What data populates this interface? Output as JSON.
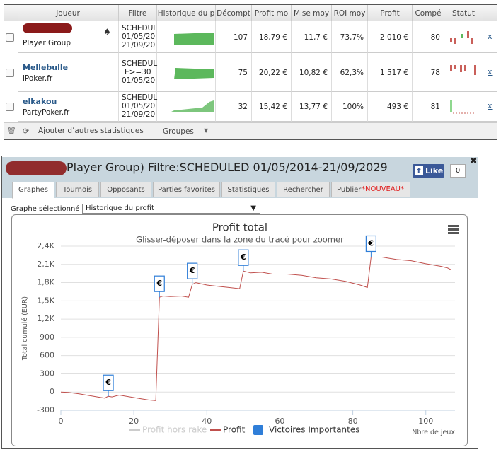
{
  "table": {
    "headers": [
      "Joueur",
      "Filtre",
      "Historique du p",
      "Décompt",
      "Profit mo",
      "Mise moy",
      "ROI moy",
      "Profit",
      "Compé",
      "Statut"
    ],
    "rows": [
      {
        "site": "Player Group",
        "filter": [
          "SCHEDUL",
          "01/05/20",
          "21/09/20"
        ],
        "cells": [
          "107",
          "18,79 €",
          "11,7 €",
          "73,7%",
          "2 010 €",
          "80"
        ],
        "action": "x"
      },
      {
        "name": "Mellebulle",
        "site": "iPoker.fr",
        "filter": [
          "SCHEDUL",
          "E>=30",
          "01/05/20"
        ],
        "cells": [
          "75",
          "20,22 €",
          "10,82 €",
          "62,3%",
          "1 517 €",
          "78"
        ],
        "action": "x"
      },
      {
        "name": "elkakou",
        "site": "PartyPoker.fr",
        "filter": [
          "SCHEDUL",
          "01/05/20",
          "21/09/20"
        ],
        "cells": [
          "32",
          "15,42 €",
          "13,77 €",
          "100%",
          "493 €",
          "81"
        ],
        "action": "x"
      }
    ]
  },
  "toolbar": {
    "add_stats": "Ajouter d’autres statistiques",
    "groups": "Groupes"
  },
  "panel": {
    "title": "Player Group) Filtre:SCHEDULED 01/05/2014-21/09/2029",
    "like": "Like",
    "like_count": "0",
    "tabs": [
      "Graphes",
      "Tournois",
      "Opposants",
      "Parties favorites",
      "Statistiques",
      "Rechercher",
      "Publier"
    ],
    "new_badge": "*NOUVEAU*",
    "select_label": "Graphe sélectionné :",
    "select_value": "Historique du profit"
  },
  "chart_data": {
    "type": "line",
    "title": "Profit total",
    "subtitle": "Glisser-déposer dans la zone du tracé pour zoomer",
    "y_label": "Total cumulé (EUR)",
    "x_label": "Nbre de jeux",
    "flag_label": "€",
    "xlim": [
      0,
      108
    ],
    "ylim": [
      -300,
      2400
    ],
    "xticks": [
      0,
      20,
      40,
      60,
      80,
      100
    ],
    "yticks": [
      -300,
      0,
      300,
      600,
      900,
      {
        "value": 1200,
        "label": "1,2K"
      },
      {
        "value": 1500,
        "label": "1,5K"
      },
      {
        "value": 1800,
        "label": "1,8K"
      },
      {
        "value": 2100,
        "label": "2,1K"
      },
      {
        "value": 2400,
        "label": "2,4K"
      }
    ],
    "series": [
      {
        "name": "Profit hors rake",
        "color": "#cccccc",
        "visible": false
      },
      {
        "name": "Profit",
        "color": "#c0504d",
        "x": [
          0,
          2,
          5,
          8,
          10,
          12,
          13,
          14,
          16,
          18,
          20,
          22,
          24,
          26,
          27,
          28,
          30,
          33,
          35,
          36,
          37,
          40,
          43,
          46,
          49,
          50,
          52,
          55,
          58,
          62,
          66,
          70,
          74,
          78,
          82,
          84,
          85,
          88,
          92,
          96,
          100,
          104,
          106,
          107
        ],
        "values": [
          0,
          -5,
          -30,
          -60,
          -80,
          -100,
          -70,
          -80,
          -50,
          -70,
          -90,
          -110,
          -130,
          -140,
          1560,
          1580,
          1570,
          1580,
          1560,
          1770,
          1800,
          1760,
          1740,
          1720,
          1700,
          1990,
          1960,
          1970,
          1940,
          1940,
          1920,
          1880,
          1860,
          1820,
          1760,
          1720,
          2220,
          2220,
          2180,
          2160,
          2110,
          2070,
          2040,
          2010
        ]
      },
      {
        "name": "Victoires Importantes",
        "color": "#2f7ed8",
        "x": [
          13,
          27,
          36,
          50,
          85
        ],
        "values": [
          -70,
          1560,
          1770,
          1990,
          2220
        ]
      }
    ]
  }
}
